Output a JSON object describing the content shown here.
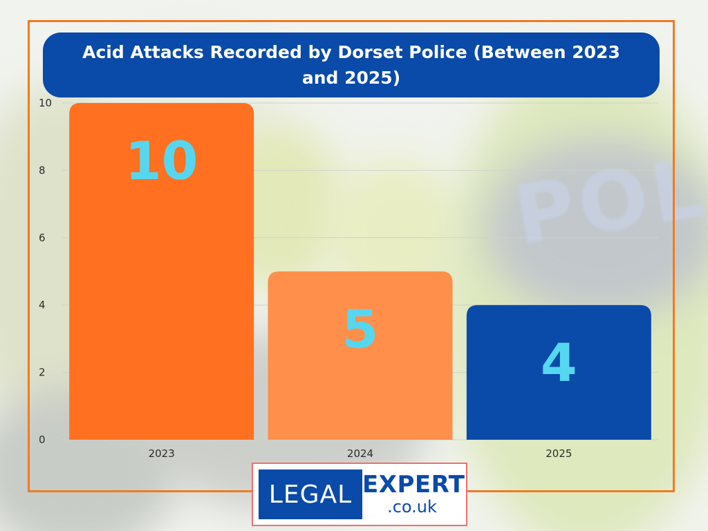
{
  "colors": {
    "frame": "#f07a24",
    "title_bg": "#0a4aa8",
    "title_text": "#ffffff",
    "bar_label": "#56d7f0",
    "grid": "#cfd2cc"
  },
  "logo": {
    "left_text": "LEGAL",
    "right_text": "EXPERT",
    "domain_text": ".co.uk"
  },
  "chart_data": {
    "type": "bar",
    "title": "Acid Attacks Recorded by Dorset Police (Between 2023 and 2025)",
    "xlabel": "",
    "ylabel": "",
    "categories": [
      "2023",
      "2024",
      "2025"
    ],
    "values": [
      10,
      5,
      4
    ],
    "data_labels": [
      "10",
      "5",
      "4"
    ],
    "bar_colors": [
      "#ff7020",
      "#ff8f4a",
      "#0a4aa8"
    ],
    "ylim": [
      0,
      10
    ],
    "yticks": [
      0,
      2,
      4,
      6,
      8,
      10
    ],
    "grid": true,
    "legend": "none"
  }
}
